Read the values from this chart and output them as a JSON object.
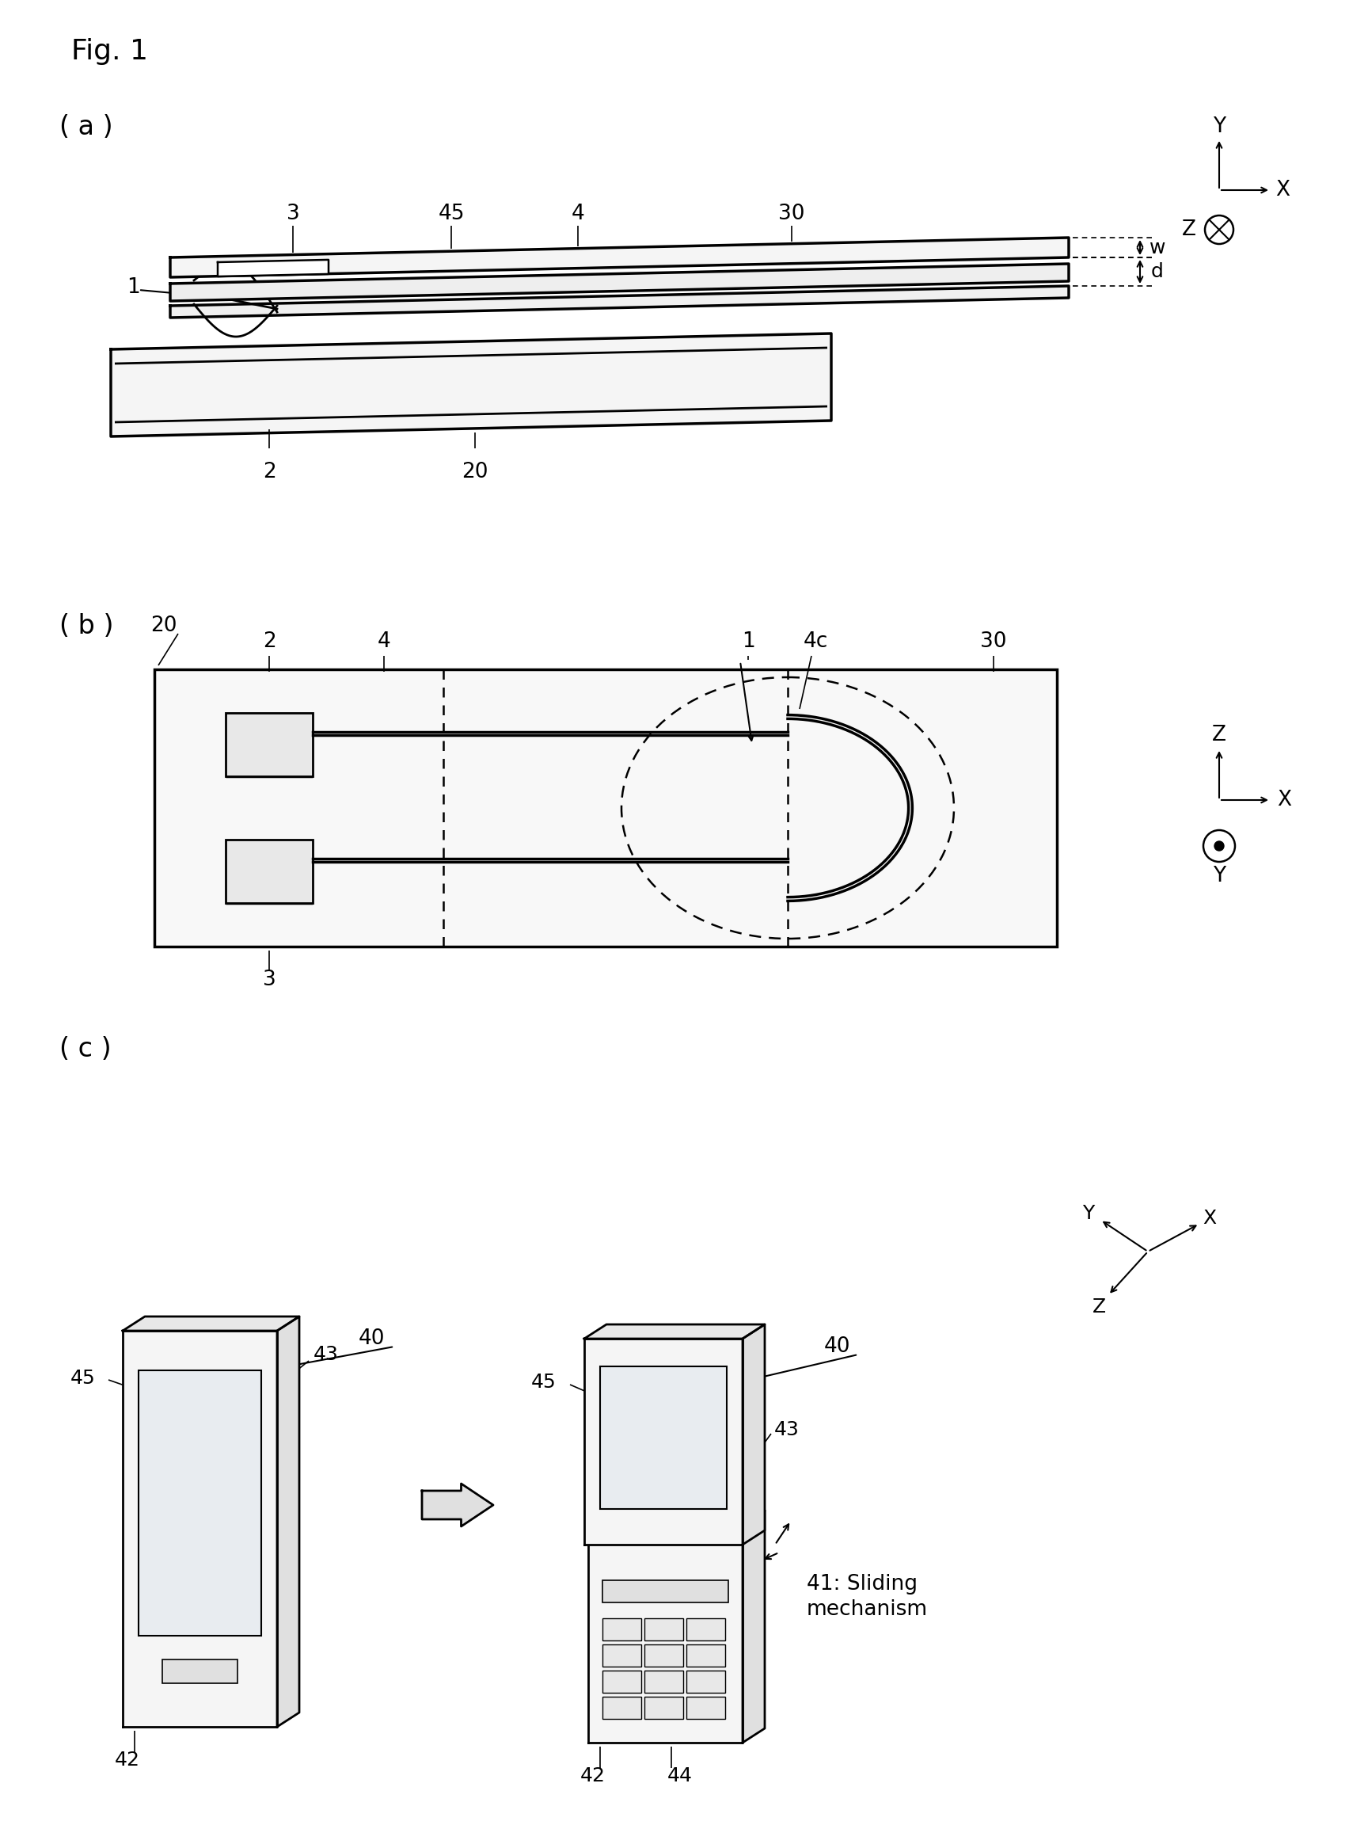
{
  "bg_color": "#ffffff",
  "lc": "#000000",
  "fig_label": "Fig. 1",
  "panel_a": "( a )",
  "panel_b": "( b )",
  "panel_c": "( c )"
}
